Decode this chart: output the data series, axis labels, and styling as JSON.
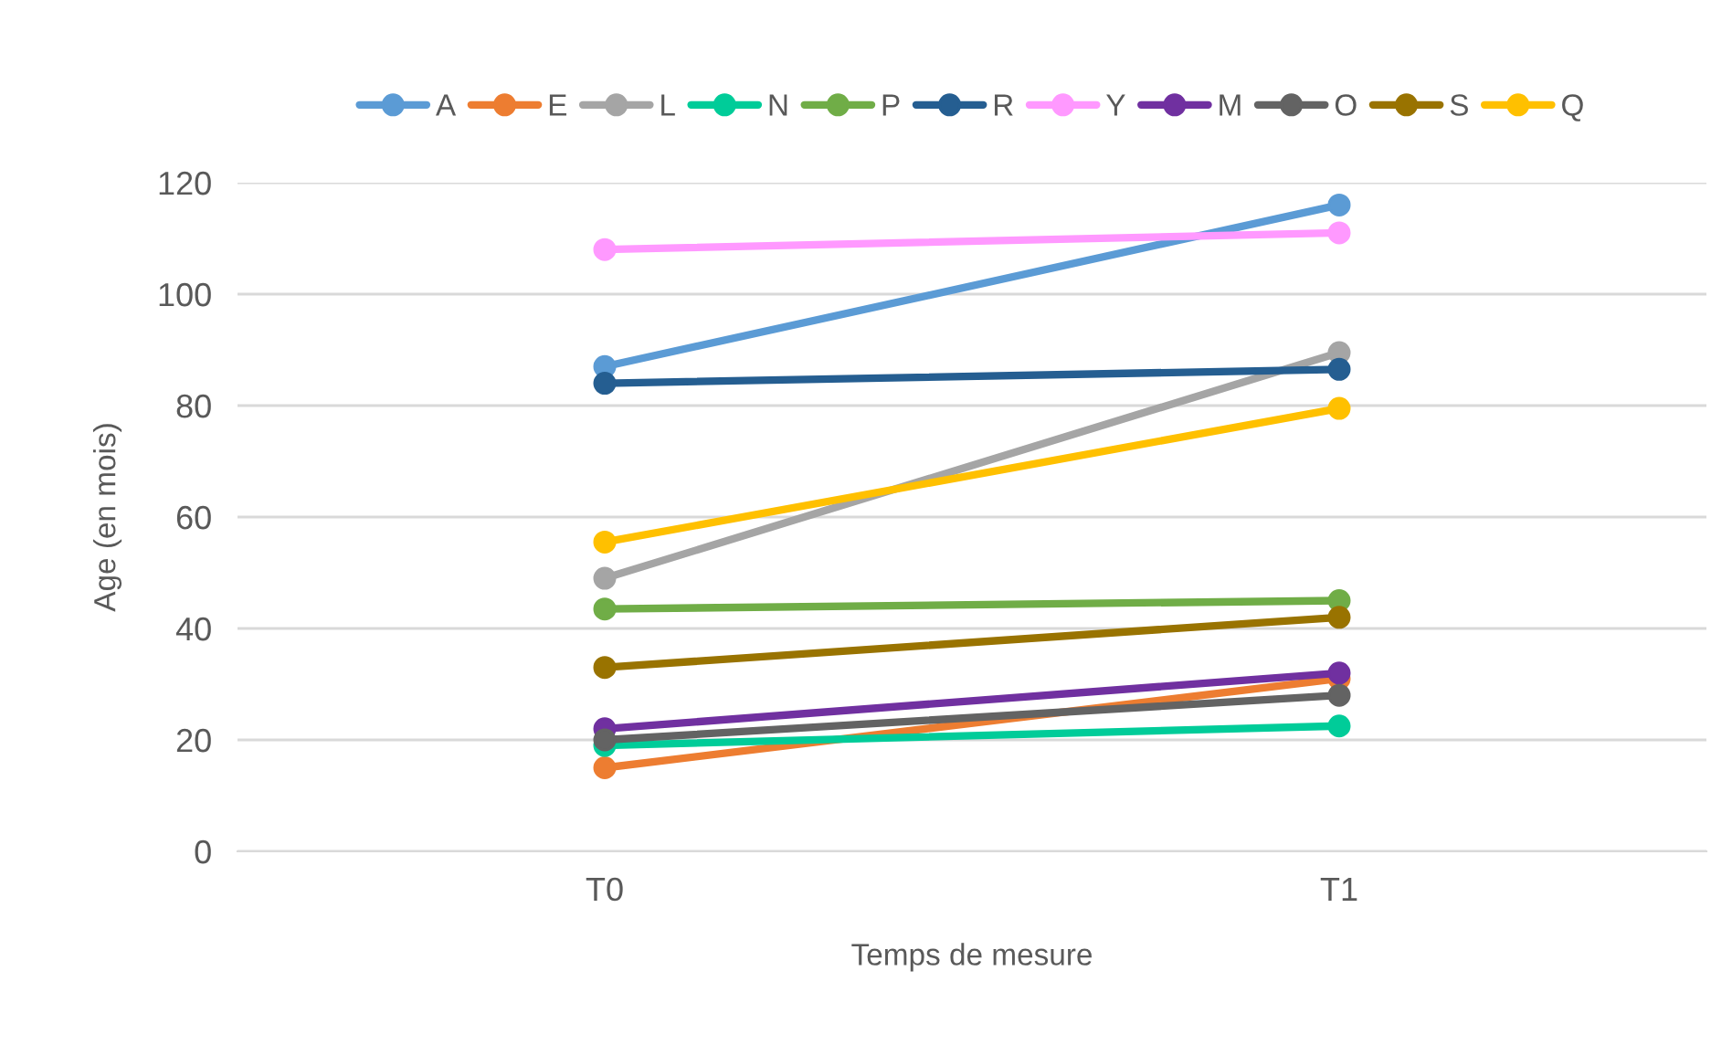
{
  "chart_data": {
    "type": "line",
    "xlabel": "Temps de mesure",
    "ylabel": "Age (en mois)",
    "categories": [
      "T0",
      "T1"
    ],
    "ylim": [
      0,
      120
    ],
    "yticks": [
      0,
      20,
      40,
      60,
      80,
      100,
      120
    ],
    "grid": "y",
    "legend": "top",
    "marker": "circle",
    "line_style": "solid",
    "series": [
      {
        "name": "A",
        "color": "#5b9bd5",
        "values": [
          87,
          116
        ]
      },
      {
        "name": "E",
        "color": "#ed7d31",
        "values": [
          15,
          31
        ]
      },
      {
        "name": "L",
        "color": "#a5a5a5",
        "values": [
          49,
          89.5
        ]
      },
      {
        "name": "N",
        "color": "#00cc99",
        "values": [
          19,
          22.5
        ]
      },
      {
        "name": "P",
        "color": "#70ad47",
        "values": [
          43.5,
          45
        ]
      },
      {
        "name": "R",
        "color": "#255e91",
        "values": [
          84,
          86.5
        ]
      },
      {
        "name": "Y",
        "color": "#ff99ff",
        "values": [
          108,
          111
        ]
      },
      {
        "name": "M",
        "color": "#7030a0",
        "values": [
          22,
          32
        ]
      },
      {
        "name": "O",
        "color": "#636363",
        "values": [
          20,
          28
        ]
      },
      {
        "name": "S",
        "color": "#997300",
        "values": [
          33,
          42
        ]
      },
      {
        "name": "Q",
        "color": "#ffc000",
        "values": [
          55.5,
          79.5
        ]
      }
    ]
  }
}
